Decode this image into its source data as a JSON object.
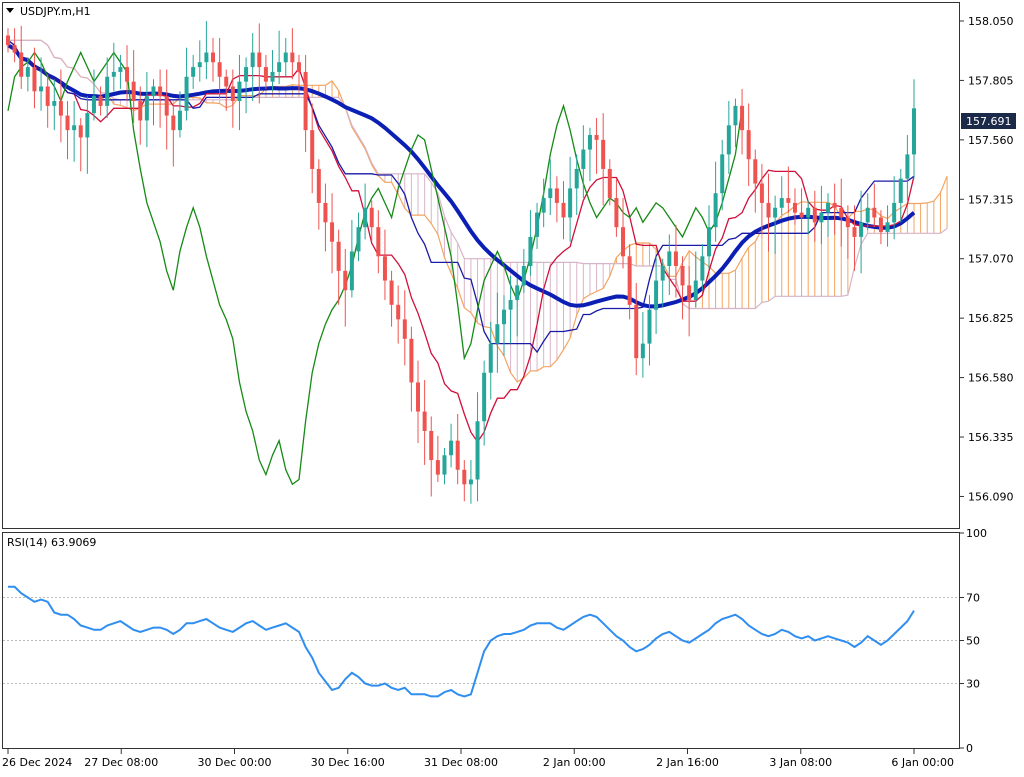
{
  "header": {
    "symbol_label": "USDJPY.m,H1",
    "rsi_label": "RSI(14) 63.9069",
    "current_price": "157.691"
  },
  "colors": {
    "bull_candle": "#26a69a",
    "bear_candle": "#ef5350",
    "ma": "#0b1fb5",
    "tenkan": "#d0103a",
    "kijun": "#1a1aa8",
    "chikou": "#158a15",
    "span_a": "#f4a460",
    "span_b": "#d8b4c8",
    "rsi": "#2f8ef0",
    "price_tag_bg": "#1c2a4a"
  },
  "chart_data": [
    {
      "type": "candlestick",
      "title": "USDJPY.m,H1",
      "x_tick_labels": [
        "26 Dec 2024",
        "27 Dec 08:00",
        "30 Dec 00:00",
        "30 Dec 16:00",
        "31 Dec 08:00",
        "2 Jan 00:00",
        "2 Jan 16:00",
        "3 Jan 08:00",
        "6 Jan 00:00"
      ],
      "y_tick_labels": [
        "158.050",
        "157.805",
        "157.560",
        "157.315",
        "157.070",
        "156.825",
        "156.580",
        "156.335",
        "156.090"
      ],
      "ylim": [
        155.96,
        158.12
      ],
      "current_price": 157.691,
      "indicators": [
        "Ichimoku Kinko Hyo",
        "Moving Average"
      ],
      "close": [
        157.95,
        157.92,
        157.82,
        157.86,
        157.76,
        157.78,
        157.7,
        157.72,
        157.66,
        157.6,
        157.62,
        157.57,
        157.67,
        157.74,
        157.7,
        157.82,
        157.84,
        157.86,
        157.8,
        157.72,
        157.64,
        157.74,
        157.78,
        157.74,
        157.66,
        157.6,
        157.68,
        157.82,
        157.86,
        157.88,
        157.92,
        157.88,
        157.82,
        157.78,
        157.72,
        157.8,
        157.86,
        157.92,
        157.86,
        157.8,
        157.84,
        157.88,
        157.92,
        157.88,
        157.84,
        157.6,
        157.44,
        157.3,
        157.22,
        157.14,
        157.02,
        156.94,
        157.1,
        157.2,
        157.28,
        157.2,
        157.08,
        156.98,
        156.88,
        156.82,
        156.74,
        156.56,
        156.44,
        156.36,
        156.24,
        156.18,
        156.26,
        156.32,
        156.2,
        156.14,
        156.16,
        156.4,
        156.6,
        156.72,
        156.8,
        156.86,
        156.9,
        156.96,
        157.04,
        157.16,
        157.26,
        157.32,
        157.36,
        157.3,
        157.24,
        157.36,
        157.44,
        157.52,
        157.58,
        157.56,
        157.44,
        157.32,
        157.2,
        157.08,
        156.88,
        156.66,
        156.72,
        156.86,
        156.98,
        157.04,
        157.1,
        157.04,
        156.96,
        156.9,
        156.98,
        157.08,
        157.2,
        157.34,
        157.5,
        157.62,
        157.7,
        157.6,
        157.48,
        157.38,
        157.3,
        157.24,
        157.28,
        157.32,
        157.3,
        157.26,
        157.24,
        157.28,
        157.22,
        157.26,
        157.3,
        157.28,
        157.24,
        157.2,
        157.16,
        157.22,
        157.28,
        157.24,
        157.18,
        157.22,
        157.3,
        157.4,
        157.5,
        157.69
      ],
      "rsi": {
        "title": "RSI(14) 63.9069",
        "period": 14,
        "value": 63.9069,
        "ylim": [
          0,
          100
        ],
        "tick_labels": [
          "100",
          "70",
          "50",
          "30",
          "0"
        ],
        "levels": [
          70,
          50,
          30
        ],
        "values": [
          75,
          75,
          72,
          70,
          68,
          69,
          68,
          63,
          62,
          62,
          60,
          57,
          56,
          55,
          55,
          57,
          58,
          59,
          57,
          55,
          54,
          55,
          56,
          56,
          55,
          53,
          55,
          58,
          58,
          59,
          60,
          58,
          56,
          55,
          54,
          56,
          58,
          59,
          57,
          55,
          56,
          57,
          58,
          56,
          54,
          47,
          42,
          35,
          31,
          27,
          28,
          32,
          35,
          33,
          30,
          29,
          29,
          30,
          28,
          27,
          28,
          25,
          25,
          25,
          24,
          24,
          26,
          27,
          25,
          24,
          25,
          35,
          45,
          50,
          52,
          53,
          53,
          54,
          55,
          57,
          58,
          58,
          58,
          56,
          55,
          57,
          59,
          61,
          62,
          61,
          58,
          55,
          52,
          50,
          47,
          45,
          46,
          48,
          51,
          53,
          54,
          52,
          50,
          49,
          51,
          53,
          55,
          58,
          60,
          61,
          62,
          60,
          57,
          55,
          53,
          52,
          53,
          55,
          54,
          52,
          51,
          52,
          50,
          51,
          52,
          51,
          50,
          49,
          47,
          49,
          52,
          50,
          48,
          50,
          53,
          56,
          59,
          63.9
        ]
      }
    }
  ]
}
